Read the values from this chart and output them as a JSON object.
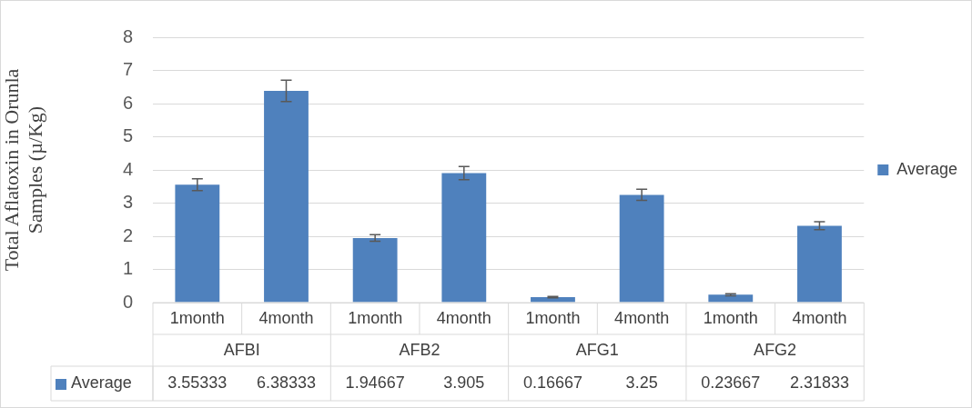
{
  "chart_data": {
    "type": "bar",
    "ylabel": "Total Aflatoxin in Orunla\nSamples (µ/Kg)",
    "categories": [
      "1month",
      "4month",
      "1month",
      "4month",
      "1month",
      "4month",
      "1month",
      "4month"
    ],
    "annotations": [
      "AFBI",
      "AFB2",
      "AFG1",
      "AFG2"
    ],
    "series": [
      {
        "name": "Average",
        "color": "#4f81bd",
        "values": [
          3.55333,
          6.38333,
          1.94667,
          3.905,
          0.16667,
          3.25,
          0.23667,
          2.31833
        ],
        "errors": [
          0.18,
          0.32,
          0.1,
          0.2,
          0.02,
          0.17,
          0.03,
          0.12
        ]
      }
    ],
    "ylim": [
      0,
      8
    ],
    "yticks": [
      0,
      1,
      2,
      3,
      4,
      5,
      6,
      7,
      8
    ],
    "grid": "y",
    "legend": "right",
    "data_labels": true
  }
}
